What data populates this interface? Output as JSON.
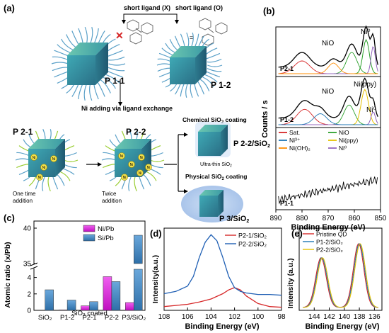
{
  "panel_a": {
    "label": "(a)",
    "short_ligand_x": "short ligand (X)",
    "short_ligand_o": "short ligand (O)",
    "p11": "P 1-1",
    "p12": "P 1-2",
    "ni_adding": "Ni adding via ligand exchange",
    "p21": "P 2-1",
    "p22": "P 2-2",
    "p22sio2": "P 2-2/SiO",
    "p3sio2": "P 3/SiO",
    "sub2": "2",
    "chem_coating": "Chemical SiO",
    "phys_coating": "Physical SiO",
    "coating": "coating",
    "ultrathin": "Ultra-thin SiO",
    "one_time": "One time",
    "twice": "Twice",
    "addition": "addition",
    "ni": "Ni"
  },
  "chart_data": [
    {
      "id": "b",
      "type": "line",
      "panel_label": "(b)",
      "xlabel": "Binding Energy (eV)",
      "ylabel": "Counts / s",
      "xlim": [
        890,
        850
      ],
      "x_ticks": [
        890,
        880,
        870,
        860,
        850
      ],
      "subpanels": [
        {
          "name": "P2-1",
          "annotations": [
            "NiO",
            "Ni⁰"
          ]
        },
        {
          "name": "P1-2",
          "annotations": [
            "NiO",
            "Ni(ppy)",
            "Ni⁰"
          ]
        },
        {
          "name": "P1-1",
          "annotations": []
        }
      ],
      "legend": [
        "Sat.",
        "NiO",
        "Ni³⁺",
        "Ni(ppy)",
        "Ni(OH)₂",
        "Ni⁰"
      ],
      "legend_colors": [
        "#d62728",
        "#2ca02c",
        "#1f77b4",
        "#e5c100",
        "#ff8c00",
        "#9467bd"
      ]
    },
    {
      "id": "c",
      "type": "bar",
      "panel_label": "(c)",
      "ylabel": "Atomic ratio (x/Pb)",
      "categories": [
        "SiO₂",
        "P1-2",
        "P2-1",
        "P2-2",
        "P3/SiO₂"
      ],
      "group_label": "SiO₂ coated",
      "series": [
        {
          "name": "Ni/Pb",
          "color": "#e020e0",
          "values": [
            0,
            0.05,
            0.55,
            4.1,
            0.95
          ]
        },
        {
          "name": "Si/Pb",
          "color": "#4a90c8",
          "values": [
            2.5,
            1.25,
            1.05,
            3.5,
            39
          ]
        }
      ],
      "axis_break": {
        "lower": [
          0,
          5
        ],
        "upper": [
          35,
          41
        ]
      },
      "y_ticks_lower": [
        0,
        2,
        4
      ],
      "y_ticks_upper": [
        35,
        40
      ]
    },
    {
      "id": "d",
      "type": "line",
      "panel_label": "(d)",
      "xlabel": "Binding Energy (eV)",
      "ylabel": "Intensity(a.u.)",
      "xlim": [
        108,
        98
      ],
      "x_ticks": [
        108,
        106,
        104,
        102,
        100,
        98
      ],
      "series": [
        {
          "name": "P2-1/SiO₂",
          "color": "#d62728",
          "x": [
            108,
            106,
            105,
            104,
            103,
            102.5,
            102,
            101.5,
            101,
            100,
            99,
            98
          ],
          "y": [
            0.05,
            0.08,
            0.11,
            0.15,
            0.22,
            0.27,
            0.3,
            0.27,
            0.19,
            0.09,
            0.05,
            0.04
          ]
        },
        {
          "name": "P2-2/SiO₂",
          "color": "#1f5fb4",
          "x": [
            108,
            107,
            106,
            105.5,
            105,
            104.5,
            104,
            103.5,
            103,
            102.5,
            102,
            101.5,
            101,
            100,
            99,
            98
          ],
          "y": [
            0.22,
            0.25,
            0.32,
            0.45,
            0.7,
            0.9,
            1.0,
            0.92,
            0.7,
            0.45,
            0.3,
            0.25,
            0.23,
            0.21,
            0.21,
            0.2
          ]
        }
      ]
    },
    {
      "id": "e",
      "type": "line",
      "panel_label": "(e)",
      "xlabel": "Binding Energy (eV)",
      "ylabel": "Intensity (a.u.)",
      "xlim": [
        146,
        135
      ],
      "x_ticks": [
        144,
        142,
        140,
        138,
        136
      ],
      "series": [
        {
          "name": "Pristine QD",
          "color": "#d62728",
          "peaks": [
            143.1,
            138.1
          ]
        },
        {
          "name": "P1-2/SiO₂",
          "color": "#1f77b4",
          "peaks": [
            143.0,
            138.0
          ]
        },
        {
          "name": "P2-2/SiO₂",
          "color": "#e5c100",
          "peaks": [
            142.9,
            137.9
          ]
        }
      ]
    }
  ]
}
